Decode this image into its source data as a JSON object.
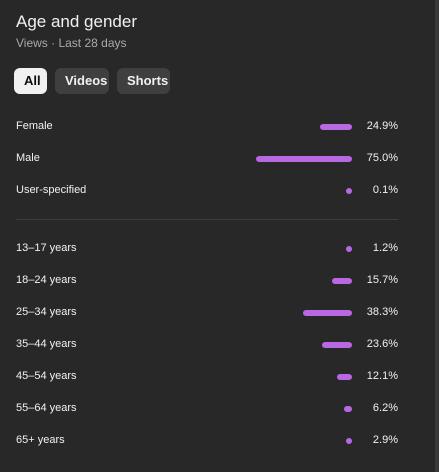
{
  "header": {
    "title": "Age and gender",
    "subtitle": "Views · Last 28 days"
  },
  "filters": [
    {
      "label": "All",
      "selected": true
    },
    {
      "label": "Videos",
      "selected": false
    },
    {
      "label": "Shorts",
      "selected": false
    }
  ],
  "colors": {
    "bar": "#b968e3",
    "background": "#282828"
  },
  "gender": [
    {
      "label": "Female",
      "value": "24.9%",
      "share": 24.9
    },
    {
      "label": "Male",
      "value": "75.0%",
      "share": 75.0
    },
    {
      "label": "User-specified",
      "value": "0.1%",
      "share": 0.1
    }
  ],
  "age": [
    {
      "label": "13–17 years",
      "value": "1.2%",
      "share": 1.2
    },
    {
      "label": "18–24 years",
      "value": "15.7%",
      "share": 15.7
    },
    {
      "label": "25–34 years",
      "value": "38.3%",
      "share": 38.3
    },
    {
      "label": "35–44 years",
      "value": "23.6%",
      "share": 23.6
    },
    {
      "label": "45–54 years",
      "value": "12.1%",
      "share": 12.1
    },
    {
      "label": "55–64 years",
      "value": "6.2%",
      "share": 6.2
    },
    {
      "label": "65+ years",
      "value": "2.9%",
      "share": 2.9
    }
  ]
}
